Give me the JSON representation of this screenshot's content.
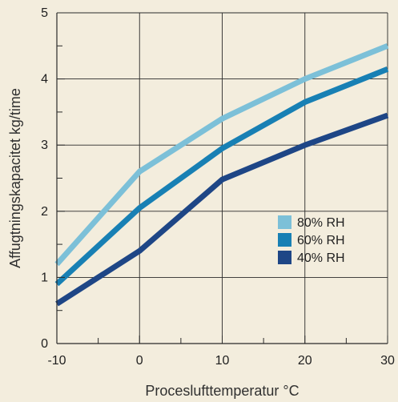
{
  "chart_data": {
    "type": "line",
    "xlabel": "Proceslufttemperatur °C",
    "ylabel": "Affugtningskapacitet kg/time",
    "xlim": [
      -10,
      30
    ],
    "ylim": [
      0,
      5
    ],
    "x_ticks": [
      -10,
      0,
      10,
      20,
      30
    ],
    "y_ticks": [
      0,
      1,
      2,
      3,
      4,
      5
    ],
    "x_tick_labels": [
      "-10",
      "0",
      "10",
      "20",
      "30"
    ],
    "y_tick_labels": [
      "0",
      "1",
      "2",
      "3",
      "4",
      "5"
    ],
    "grid": true,
    "legend_position": "lower-right",
    "x": [
      -10,
      0,
      10,
      20,
      30
    ],
    "series": [
      {
        "name": "80% RH",
        "color": "#7cc0d8",
        "values": [
          1.2,
          2.6,
          3.4,
          4.0,
          4.5
        ]
      },
      {
        "name": "60% RH",
        "color": "#1880b4",
        "values": [
          0.9,
          2.05,
          2.95,
          3.65,
          4.15
        ]
      },
      {
        "name": "40% RH",
        "color": "#1e4686",
        "values": [
          0.6,
          1.4,
          2.48,
          3.0,
          3.45
        ]
      }
    ]
  }
}
